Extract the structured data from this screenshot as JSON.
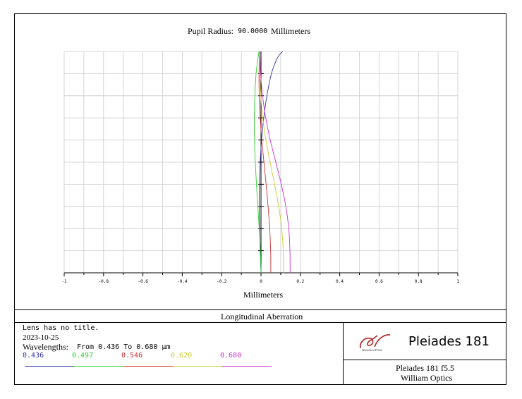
{
  "header": {
    "pupil_label": "Pupil Radius:",
    "pupil_value": "90.0000",
    "pupil_unit": "Millimeters"
  },
  "chart_data": {
    "type": "line",
    "title": "Longitudinal Aberration",
    "xlabel": "Millimeters",
    "ylabel": "",
    "xlim": [
      -1,
      1
    ],
    "ylim": [
      0,
      1
    ],
    "grid": true,
    "xticks": [
      "-1",
      "-0.8",
      "-0.6",
      "-0.4",
      "-0.2",
      "0",
      "0.2",
      "0.4",
      "0.6",
      "0.8",
      "1"
    ],
    "series": [
      {
        "name": "0.436",
        "color": "#3333aa",
        "x": [
          0.0,
          -0.004,
          -0.007,
          -0.009,
          -0.008,
          -0.004,
          0.003,
          0.014,
          0.03,
          0.053,
          0.083,
          0.11
        ],
        "y": [
          0.0,
          0.1,
          0.2,
          0.3,
          0.4,
          0.5,
          0.6,
          0.7,
          0.8,
          0.9,
          0.97,
          1.0
        ]
      },
      {
        "name": "0.497",
        "color": "#33cc33",
        "x": [
          0.0,
          -0.003,
          -0.009,
          -0.016,
          -0.023,
          -0.029,
          -0.033,
          -0.034,
          -0.031,
          -0.025,
          -0.015,
          -0.01
        ],
        "y": [
          0.0,
          0.1,
          0.2,
          0.3,
          0.4,
          0.5,
          0.6,
          0.7,
          0.8,
          0.9,
          0.97,
          1.0
        ]
      },
      {
        "name": "0.546",
        "color": "#cc3333",
        "x": [
          0.05,
          0.049,
          0.044,
          0.036,
          0.026,
          0.015,
          0.004,
          -0.004,
          -0.009,
          -0.01,
          -0.008,
          -0.006
        ],
        "y": [
          0.0,
          0.1,
          0.2,
          0.3,
          0.4,
          0.5,
          0.6,
          0.7,
          0.8,
          0.9,
          0.97,
          1.0
        ]
      },
      {
        "name": "0.620",
        "color": "#cccc33",
        "x": [
          0.115,
          0.113,
          0.105,
          0.09,
          0.069,
          0.046,
          0.025,
          0.009,
          -0.001,
          -0.006,
          -0.007,
          -0.007
        ],
        "y": [
          0.0,
          0.1,
          0.2,
          0.3,
          0.4,
          0.5,
          0.6,
          0.7,
          0.8,
          0.9,
          0.97,
          1.0
        ]
      },
      {
        "name": "0.680",
        "color": "#cc33cc",
        "x": [
          0.148,
          0.147,
          0.141,
          0.126,
          0.103,
          0.075,
          0.047,
          0.024,
          0.008,
          -0.002,
          -0.005,
          -0.006
        ],
        "y": [
          0.0,
          0.1,
          0.2,
          0.3,
          0.4,
          0.5,
          0.6,
          0.7,
          0.8,
          0.9,
          0.97,
          1.0
        ]
      }
    ]
  },
  "info": {
    "line1": "Lens has no title.",
    "line2": "2023-10-25",
    "wavelengths_label": "Wavelengths:",
    "wavelengths_range": "From 0.436 To 0.680 µm"
  },
  "brand": {
    "logo_text": "WILLIAM OPTICS",
    "product": "Pleiades 181",
    "caption_line1": "Pleiades 181 f5.5",
    "caption_line2": "William Optics",
    "logo_color": "#b02020"
  }
}
